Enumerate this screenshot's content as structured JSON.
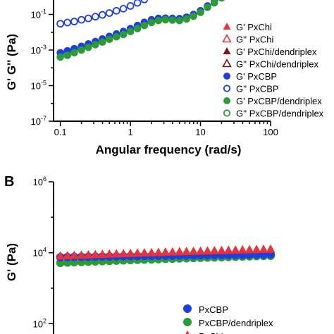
{
  "chart_data": [
    {
      "panel": "A",
      "type": "scatter",
      "title": "",
      "xlabel": "Angular frequency (rad/s)",
      "ylabel": "G' G'' (Pa)",
      "x_scale": "log",
      "y_scale": "log",
      "xlim": [
        0.08,
        100
      ],
      "ylim": [
        1e-07,
        10
      ],
      "x_ticks": [
        {
          "value": 0.1,
          "label": "0.1"
        },
        {
          "value": 1,
          "label": "1"
        },
        {
          "value": 10,
          "label": "10"
        },
        {
          "value": 100,
          "label": "100"
        }
      ],
      "y_ticks": [
        {
          "value": 0.1,
          "base": "10",
          "exp": "-1"
        },
        {
          "value": 0.001,
          "base": "10",
          "exp": "-3"
        },
        {
          "value": 1e-05,
          "base": "10",
          "exp": "-5"
        },
        {
          "value": 1e-07,
          "base": "10",
          "exp": "-7"
        }
      ],
      "legend_position": "right",
      "series": [
        {
          "name": "G' PxChi",
          "marker": "triangle",
          "fill": "filled",
          "color": "#e8323c",
          "x": [
            0.1,
            0.126,
            0.158,
            0.2,
            0.251,
            0.316
          ],
          "y": [
            3,
            3,
            3,
            3,
            3,
            3
          ]
        },
        {
          "name": "G'' PxChi",
          "marker": "triangle",
          "fill": "open",
          "color": "#e8323c",
          "x": [],
          "y": []
        },
        {
          "name": "G' PxChi/dendriplex",
          "marker": "triangle",
          "fill": "filled",
          "color": "#7a1010",
          "x": [
            0.1,
            0.126,
            0.158,
            0.2,
            0.251,
            0.316,
            0.398
          ],
          "y": [
            3.2,
            3.2,
            3.2,
            3.2,
            3.2,
            3.2,
            3.2
          ]
        },
        {
          "name": "G'' PxChi/dendriplex",
          "marker": "triangle",
          "fill": "open",
          "color": "#7a1010",
          "x": [
            0.1,
            0.126,
            0.158,
            0.2,
            0.251,
            0.316,
            0.398
          ],
          "y": [
            3.2,
            3.2,
            3.2,
            3.2,
            3.2,
            3.2,
            3.2
          ]
        },
        {
          "name": "G' PxCBP",
          "marker": "circle",
          "fill": "filled",
          "color": "#1f3fdc",
          "x": [
            0.1,
            0.126,
            0.158,
            0.2,
            0.251,
            0.316,
            0.398,
            0.501,
            0.631,
            0.794,
            1,
            1.26,
            1.58,
            2,
            2.51,
            3.16,
            3.98,
            5.01,
            6.31,
            7.94,
            10,
            12.6,
            15.8,
            20,
            25.1,
            31.6
          ],
          "y": [
            0.0007,
            0.0009,
            0.0012,
            0.0016,
            0.0022,
            0.003,
            0.0042,
            0.0058,
            0.008,
            0.011,
            0.016,
            0.024,
            0.036,
            0.05,
            0.06,
            0.062,
            0.06,
            0.058,
            0.07,
            0.1,
            0.16,
            0.3,
            0.55,
            1,
            1.8,
            2.8
          ]
        },
        {
          "name": "G'' PxCBP",
          "marker": "circle",
          "fill": "open",
          "color": "#1f3fdc",
          "x": [
            0.1,
            0.126,
            0.158,
            0.2,
            0.251,
            0.316,
            0.398,
            0.501,
            0.631,
            0.794,
            1,
            1.26,
            1.58,
            2,
            2.51,
            3.16
          ],
          "y": [
            0.03,
            0.035,
            0.04,
            0.05,
            0.06,
            0.075,
            0.095,
            0.12,
            0.16,
            0.21,
            0.3,
            0.45,
            0.7,
            1.1,
            1.8,
            2.8
          ]
        },
        {
          "name": "G' PxCBP/dendriplex",
          "marker": "circle",
          "fill": "filled",
          "color": "#2d9a3a",
          "x": [
            0.1,
            0.126,
            0.158,
            0.2,
            0.251,
            0.316,
            0.398,
            0.501,
            0.631,
            0.794,
            1,
            1.26,
            1.58,
            2,
            2.51,
            3.16,
            3.98,
            5.01,
            6.31,
            7.94,
            10,
            12.6,
            15.8,
            20,
            25.1,
            31.6
          ],
          "y": [
            0.0004,
            0.0005,
            0.0007,
            0.001,
            0.0014,
            0.002,
            0.0028,
            0.004,
            0.0055,
            0.0075,
            0.011,
            0.016,
            0.024,
            0.035,
            0.045,
            0.05,
            0.048,
            0.045,
            0.055,
            0.08,
            0.13,
            0.25,
            0.45,
            0.85,
            1.5,
            2.5
          ]
        },
        {
          "name": "G'' PxCBP/dendriplex",
          "marker": "circle",
          "fill": "open",
          "color": "#2d9a3a",
          "x": [],
          "y": []
        }
      ]
    },
    {
      "panel": "B",
      "type": "scatter",
      "title": "",
      "xlabel": "",
      "ylabel": "G' (Pa)",
      "x_scale": "log",
      "y_scale": "log",
      "xlim": [
        0.08,
        100
      ],
      "ylim": [
        1,
        1000000
      ],
      "y_ticks": [
        {
          "value": 1000000,
          "base": "10",
          "exp": "6"
        },
        {
          "value": 10000,
          "base": "10",
          "exp": "4"
        },
        {
          "value": 100,
          "base": "10",
          "exp": "2"
        }
      ],
      "legend_position": "bottom-center",
      "series": [
        {
          "name": "PxCBP",
          "marker": "circle",
          "fill": "filled",
          "color": "#1f3fdc",
          "x": [
            0.1,
            0.126,
            0.158,
            0.2,
            0.251,
            0.316,
            0.398,
            0.501,
            0.631,
            0.794,
            1,
            1.26,
            1.58,
            2,
            2.51,
            3.16,
            3.98,
            5.01,
            6.31,
            7.94,
            10,
            12.6,
            15.8,
            20,
            25.1,
            31.6,
            39.8,
            50.1,
            63.1,
            79.4,
            100
          ],
          "y": [
            7500,
            7550,
            7600,
            7650,
            7700,
            7750,
            7800,
            7850,
            7900,
            7950,
            8000,
            8050,
            8100,
            8150,
            8200,
            8250,
            8300,
            8350,
            8400,
            8450,
            8500,
            8550,
            8600,
            8650,
            8700,
            8750,
            8800,
            8850,
            8900,
            8950,
            9000
          ]
        },
        {
          "name": "PxCBP/dendriplex",
          "marker": "circle",
          "fill": "filled",
          "color": "#2d9a3a",
          "x": [
            0.1,
            0.126,
            0.158,
            0.2,
            0.251,
            0.316,
            0.398,
            0.501,
            0.631,
            0.794,
            1,
            1.26,
            1.58,
            2,
            2.51,
            3.16,
            3.98,
            5.01,
            6.31,
            7.94,
            10,
            12.6,
            15.8,
            20,
            25.1,
            31.6,
            39.8,
            50.1,
            63.1,
            79.4,
            100
          ],
          "y": [
            5200,
            5300,
            5400,
            5500,
            5600,
            5700,
            5800,
            5900,
            6000,
            6100,
            6200,
            6300,
            6400,
            6500,
            6600,
            6700,
            6800,
            6900,
            7000,
            7100,
            7200,
            7300,
            7400,
            7500,
            7600,
            7700,
            7800,
            7900,
            8000,
            8100,
            8200
          ]
        },
        {
          "name": "PxChi",
          "marker": "triangle",
          "fill": "filled",
          "color": "#e8323c",
          "x": [
            0.1,
            0.126,
            0.158,
            0.2,
            0.251,
            0.316,
            0.398,
            0.501,
            0.631,
            0.794,
            1,
            1.26,
            1.58,
            2,
            2.51,
            3.16,
            3.98,
            5.01,
            6.31,
            7.94,
            10,
            12.6,
            15.8,
            20,
            25.1,
            31.6,
            39.8,
            50.1,
            63.1,
            79.4,
            100
          ],
          "y": [
            8000,
            8150,
            8300,
            8450,
            8600,
            8750,
            8900,
            9050,
            9200,
            9350,
            9500,
            9650,
            9800,
            9950,
            10100,
            10250,
            10400,
            10550,
            10700,
            10850,
            11000,
            11150,
            11300,
            11450,
            11600,
            11750,
            11900,
            12050,
            12200,
            12350,
            12500
          ]
        }
      ]
    }
  ]
}
